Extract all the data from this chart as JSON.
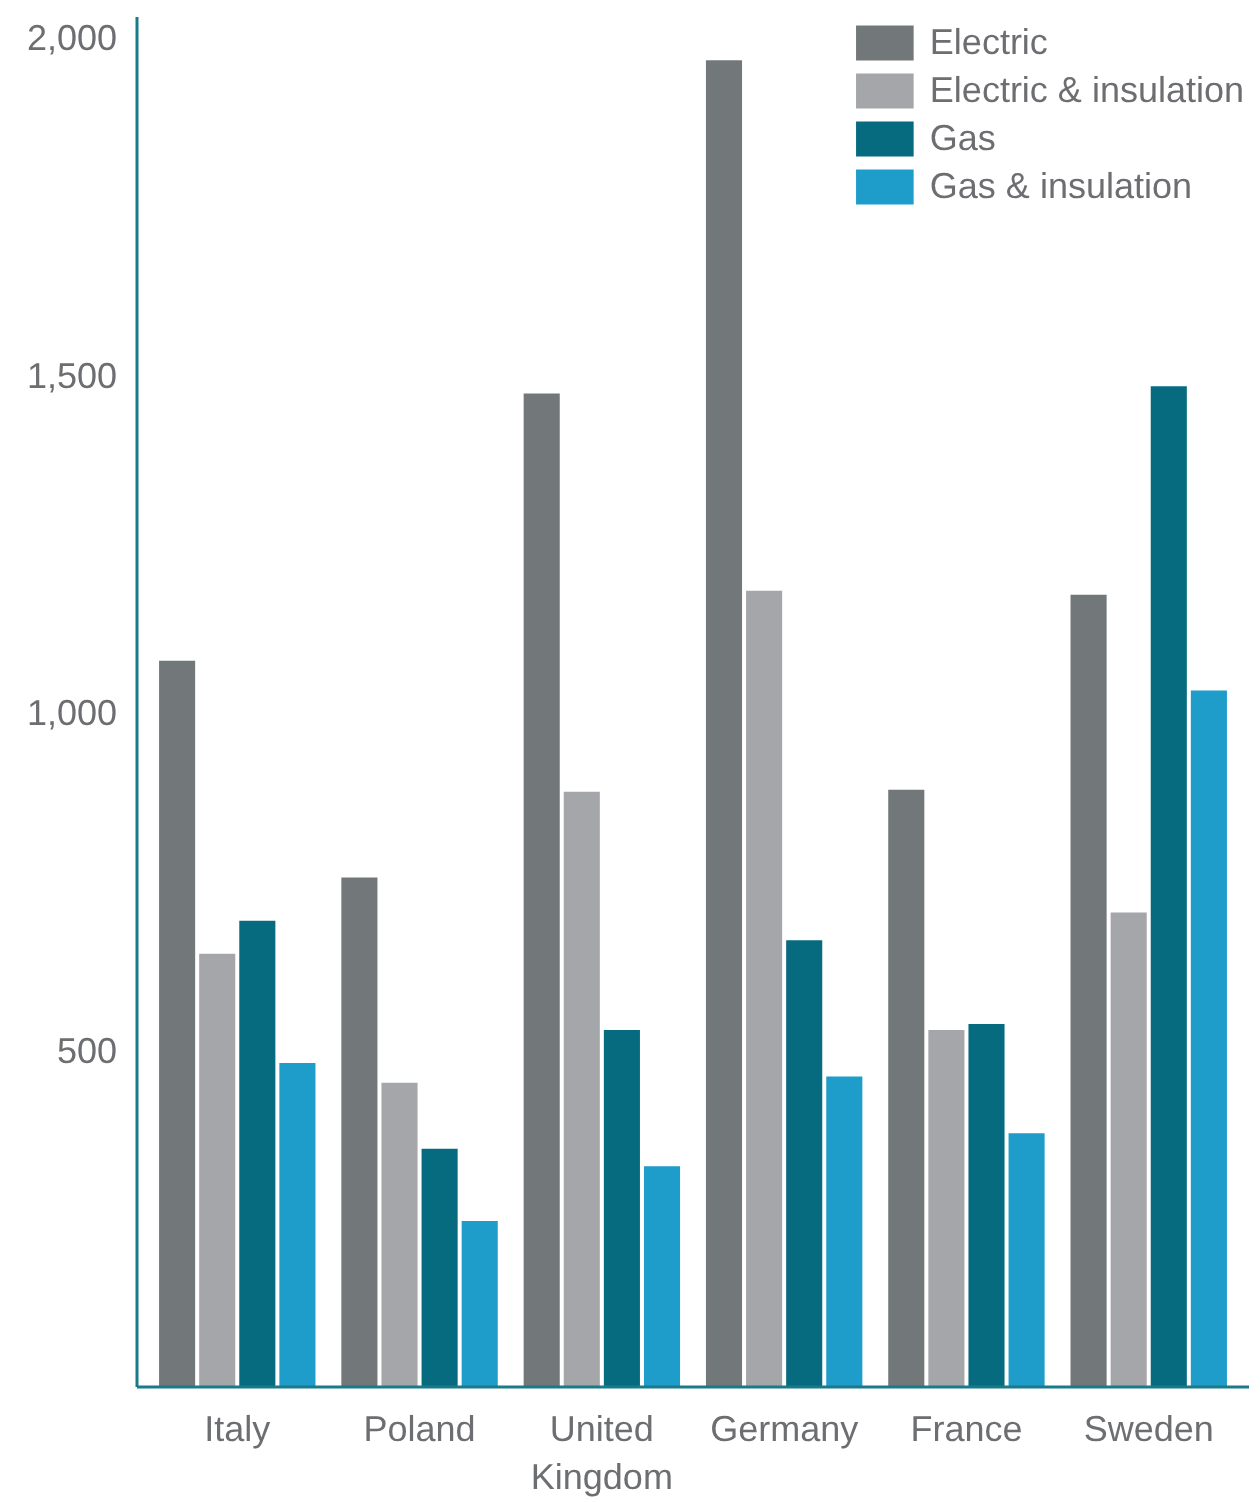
{
  "chart_data": {
    "type": "bar",
    "categories": [
      "Italy",
      "Poland",
      "United Kingdom",
      "Germany",
      "France",
      "Sweden"
    ],
    "series": [
      {
        "name": "Electric",
        "color": "#72777a",
        "values": [
          1076,
          755,
          1472,
          1966,
          885,
          1174
        ]
      },
      {
        "name": "Electric & insulation",
        "color": "#a5a6aa",
        "values": [
          642,
          451,
          882,
          1180,
          529,
          703
        ]
      },
      {
        "name": "Gas",
        "color": "#076b80",
        "values": [
          691,
          353,
          529,
          662,
          538,
          1483
        ]
      },
      {
        "name": "Gas & insulation",
        "color": "#1e9dca",
        "values": [
          480,
          246,
          327,
          460,
          376,
          1032
        ]
      }
    ],
    "ylim": [
      0,
      2030
    ],
    "yticks": [
      {
        "value": 500,
        "label": "500"
      },
      {
        "value": 1000,
        "label": "1,000"
      },
      {
        "value": 1500,
        "label": "1,500"
      },
      {
        "value": 2000,
        "label": "2,000"
      }
    ],
    "grid": false,
    "legend": "top right"
  }
}
